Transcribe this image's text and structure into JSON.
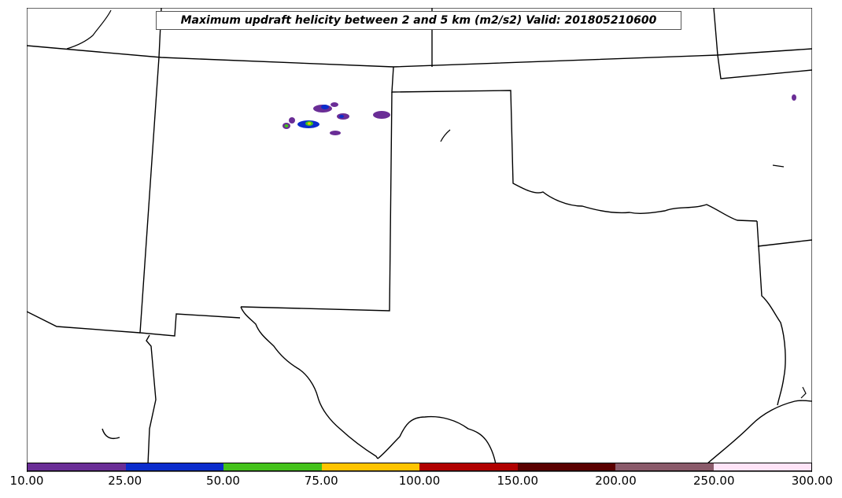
{
  "title": "Maximum updraft helicity between 2 and 5 km (m2/s2) Valid: 201805210600",
  "colorbar": {
    "colors": [
      "#6a2d96",
      "#0b2ccc",
      "#44c21b",
      "#ffc400",
      "#b00000",
      "#5a0000",
      "#8a5a6a",
      "#ffe4f8"
    ],
    "tick_labels": [
      "10.00",
      "25.00",
      "50.00",
      "75.00",
      "100.00",
      "150.00",
      "200.00",
      "250.00",
      "300.00"
    ]
  },
  "map": {
    "background": "#ffffff",
    "boundary_color": "#000000"
  }
}
